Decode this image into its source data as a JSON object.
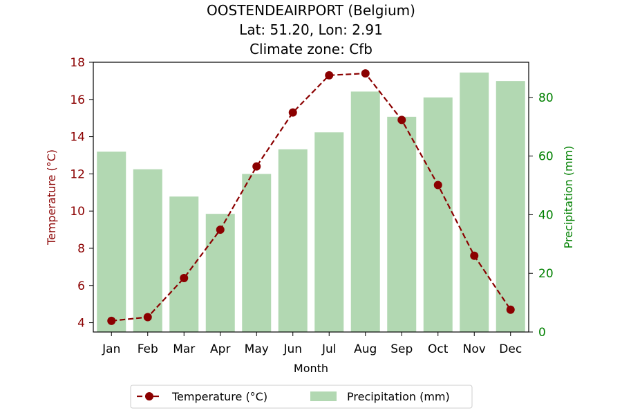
{
  "chart_data": {
    "type": "bar+line",
    "title_lines": [
      "OOSTENDEAIRPORT (Belgium)",
      "Lat: 51.20, Lon: 2.91",
      "Climate zone: Cfb"
    ],
    "xlabel": "Month",
    "ylabel_left": "Temperature (°C)",
    "ylabel_right": "Precipitation (mm)",
    "categories": [
      "Jan",
      "Feb",
      "Mar",
      "Apr",
      "May",
      "Jun",
      "Jul",
      "Aug",
      "Sep",
      "Oct",
      "Nov",
      "Dec"
    ],
    "ylim_left": [
      3.5,
      18
    ],
    "ylim_right": [
      0,
      92
    ],
    "yticks_left": [
      4,
      6,
      8,
      10,
      12,
      14,
      16,
      18
    ],
    "yticks_right": [
      0,
      20,
      40,
      60,
      80
    ],
    "series": [
      {
        "name": "Temperature (°C)",
        "type": "line",
        "axis": "left",
        "color": "#8b0000",
        "values": [
          4.1,
          4.3,
          6.4,
          9.0,
          12.4,
          15.3,
          17.3,
          17.4,
          14.9,
          11.4,
          7.6,
          4.7
        ]
      },
      {
        "name": "Precipitation (mm)",
        "type": "bar",
        "axis": "right",
        "color": "#b2d8b2",
        "values": [
          61.5,
          55.5,
          46.2,
          40.3,
          53.9,
          62.3,
          68.1,
          82.0,
          73.4,
          80.0,
          88.5,
          85.6
        ]
      }
    ],
    "legend_position": "bottom-center",
    "left_axis_color": "#8b0000",
    "right_axis_color": "#008000"
  }
}
